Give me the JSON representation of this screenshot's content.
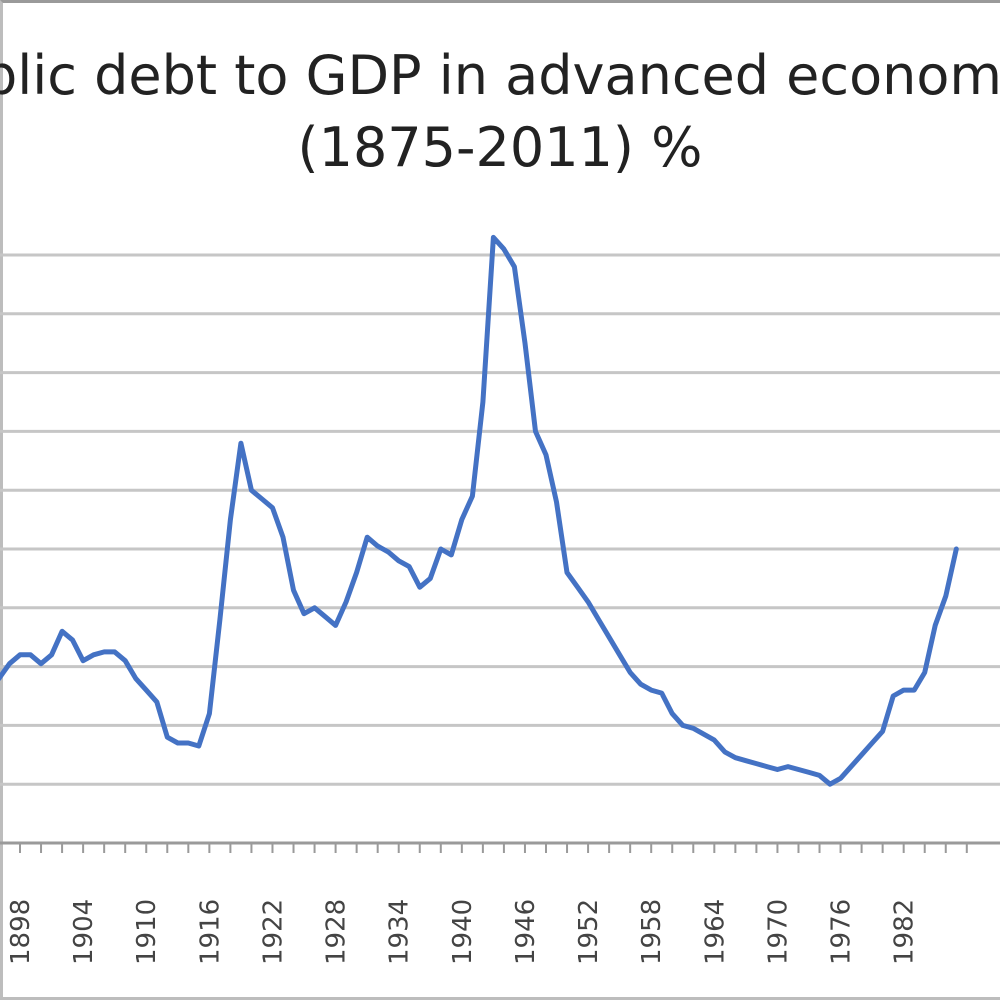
{
  "chart_data": {
    "type": "line",
    "title": "Public debt to GDP in advanced economies",
    "title_visible_line1": "blic debt to GDP in advanced economi",
    "subtitle": "(1875-2011) %",
    "xlabel": "",
    "ylabel": "",
    "grid": true,
    "legend": "none",
    "line_color": "#4472c4",
    "x_tick_labels": [
      "1898",
      "1904",
      "1910",
      "1916",
      "1922",
      "1928",
      "1934",
      "1940",
      "1946",
      "1952",
      "1958",
      "1964",
      "1970",
      "1976",
      "1982"
    ],
    "ylim": [
      0,
      100
    ],
    "series": [
      {
        "x": [
          1891,
          1892,
          1893,
          1894,
          1895,
          1896,
          1897,
          1898,
          1899,
          1900,
          1901,
          1902,
          1903,
          1904,
          1905,
          1906,
          1907,
          1908,
          1909,
          1910,
          1911,
          1912,
          1913,
          1914,
          1915,
          1916,
          1917,
          1918,
          1919,
          1920,
          1921,
          1922,
          1923,
          1924,
          1925,
          1926,
          1927,
          1928,
          1929,
          1930,
          1931,
          1932,
          1933,
          1934,
          1935,
          1936,
          1937,
          1938,
          1939,
          1940,
          1941,
          1942,
          1943,
          1944,
          1945,
          1946,
          1947,
          1948,
          1949,
          1950,
          1951,
          1952,
          1953,
          1954,
          1955,
          1956,
          1957,
          1958,
          1959,
          1960,
          1961,
          1962,
          1963,
          1964,
          1965,
          1966,
          1967,
          1968,
          1969,
          1970,
          1971,
          1972,
          1973,
          1974,
          1975,
          1976,
          1977,
          1978,
          1979,
          1980,
          1981,
          1982,
          1983,
          1984,
          1985,
          1986,
          1987
        ],
        "values": [
          35,
          32,
          30,
          29.5,
          29,
          28,
          30.5,
          32,
          32,
          30.5,
          32,
          36,
          34.5,
          31,
          32,
          32.5,
          32.5,
          31,
          28,
          26,
          24,
          18,
          17,
          17,
          16.5,
          22,
          38,
          55,
          68,
          60,
          58.5,
          57,
          52,
          43,
          39,
          40,
          38.5,
          37,
          41,
          46,
          52,
          50.5,
          49.5,
          48,
          47,
          43.5,
          45,
          50,
          49,
          55,
          59,
          75,
          103,
          101,
          98,
          85,
          70,
          66,
          58,
          46,
          43.5,
          41,
          38,
          35,
          32,
          29,
          27,
          26,
          25.5,
          22,
          20,
          19.5,
          18.5,
          17.5,
          15.5,
          14.5,
          14,
          13.5,
          13,
          12.5,
          13,
          12.5,
          12,
          11.5,
          10,
          11,
          13,
          15,
          17,
          19,
          25,
          26,
          26,
          29,
          37,
          42,
          50
        ]
      }
    ]
  }
}
